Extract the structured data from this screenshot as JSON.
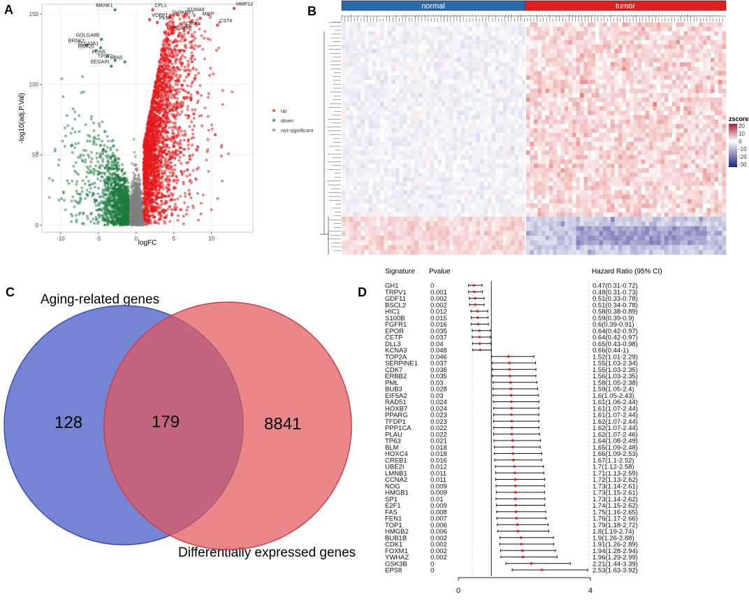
{
  "panel_letters": {
    "a": "A",
    "b": "B",
    "c": "C",
    "d": "D"
  },
  "chart_data": [
    {
      "panel": "A",
      "type": "scatter",
      "title": "",
      "xlabel": "logFC",
      "ylabel": "-log10(adj.P.Val)",
      "xlim": [
        -12.5,
        15.5
      ],
      "ylim": [
        -5,
        157
      ],
      "xticks": [
        -10,
        -5,
        0,
        5,
        10
      ],
      "yticks": [
        0,
        50,
        100,
        150
      ],
      "grid": true,
      "legend": {
        "position": "right",
        "entries": [
          "up",
          "down",
          "not-significant"
        ]
      },
      "colors": {
        "up": "#e41a1c",
        "down": "#1b7a3e",
        "not-significant": "#7f7f7f"
      },
      "labeled_genes": [
        {
          "gene": "MKNK1",
          "x": -2.8,
          "y": 153
        },
        {
          "gene": "CFL1",
          "x": 2.2,
          "y": 153
        },
        {
          "gene": "SH3KBP1",
          "x": 4.5,
          "y": 148
        },
        {
          "gene": "S100A6",
          "x": 6.5,
          "y": 150
        },
        {
          "gene": "MMP12",
          "x": 13.0,
          "y": 154
        },
        {
          "gene": "VOPP1",
          "x": 1.8,
          "y": 146
        },
        {
          "gene": "PKM",
          "x": 2.8,
          "y": 144
        },
        {
          "gene": "MISP",
          "x": 8.5,
          "y": 147
        },
        {
          "gene": "CRIP1",
          "x": 6.3,
          "y": 140
        },
        {
          "gene": "CST4",
          "x": 10.8,
          "y": 142
        },
        {
          "gene": "LGALS3BP",
          "x": 3.8,
          "y": 137
        },
        {
          "gene": "GOLGA8B",
          "x": -4.6,
          "y": 132
        },
        {
          "gene": "BRSK2",
          "x": -6.6,
          "y": 128
        },
        {
          "gene": "SLC43A1",
          "x": -4.7,
          "y": 126
        },
        {
          "gene": "RBM20",
          "x": -5.3,
          "y": 124
        },
        {
          "gene": "PLIN5",
          "x": -3.8,
          "y": 120
        },
        {
          "gene": "UBA5",
          "x": -1.5,
          "y": 116
        },
        {
          "gene": "BEGAIN",
          "x": -3.3,
          "y": 113
        },
        {
          "gene": "TPST2",
          "x": -2.8,
          "y": 117
        }
      ]
    },
    {
      "panel": "B",
      "type": "heatmap",
      "groups": [
        "normal",
        "tumor"
      ],
      "group_colors": [
        "#2b6aa8",
        "#e0201f"
      ],
      "legend_title": "zscore",
      "legend_ticks": [
        "20",
        "10",
        "0",
        "-10",
        "-20",
        "-30"
      ],
      "value_range": [
        -30,
        20
      ]
    },
    {
      "panel": "C",
      "type": "venn",
      "sets": [
        {
          "label": "Aging-related genes",
          "only": "128",
          "color": "#4f63c6"
        },
        {
          "label": "Differentially expressed genes",
          "only": "8841",
          "color": "#e2595e"
        }
      ],
      "intersection": "179"
    },
    {
      "panel": "D",
      "type": "forest",
      "headers": {
        "signature": "Signature",
        "pvalue": "Pvalue",
        "hr": "Hazard Ratio (95% CI)"
      },
      "xlim": [
        0,
        4
      ],
      "xticks": [
        "0",
        "4"
      ],
      "reference_line": 1,
      "rows": [
        {
          "signature": "GH1",
          "pvalue": "0",
          "hr": 0.47,
          "lo": 0.31,
          "hi": 0.72,
          "label": "0.47(0.31-0.72)"
        },
        {
          "signature": "TRPV1",
          "pvalue": "0.001",
          "hr": 0.48,
          "lo": 0.31,
          "hi": 0.73,
          "label": "0.48(0.31-0.73)"
        },
        {
          "signature": "GDF11",
          "pvalue": "0.002",
          "hr": 0.51,
          "lo": 0.33,
          "hi": 0.78,
          "label": "0.51(0.33-0.78)"
        },
        {
          "signature": "BSCL2",
          "pvalue": "0.002",
          "hr": 0.51,
          "lo": 0.34,
          "hi": 0.78,
          "label": "0.51(0.34-0.78)"
        },
        {
          "signature": "HIC1",
          "pvalue": "0.012",
          "hr": 0.58,
          "lo": 0.38,
          "hi": 0.89,
          "label": "0.58(0.38-0.89)"
        },
        {
          "signature": "S100B",
          "pvalue": "0.015",
          "hr": 0.59,
          "lo": 0.39,
          "hi": 0.9,
          "label": "0.59(0.39-0.9)"
        },
        {
          "signature": "FGFR1",
          "pvalue": "0.016",
          "hr": 0.6,
          "lo": 0.39,
          "hi": 0.91,
          "label": "0.6(0.39-0.91)"
        },
        {
          "signature": "EPOR",
          "pvalue": "0.035",
          "hr": 0.64,
          "lo": 0.42,
          "hi": 0.97,
          "label": "0.64(0.42-0.97)"
        },
        {
          "signature": "CETP",
          "pvalue": "0.037",
          "hr": 0.64,
          "lo": 0.42,
          "hi": 0.97,
          "label": "0.64(0.42-0.97)"
        },
        {
          "signature": "DLL3",
          "pvalue": "0.04",
          "hr": 0.65,
          "lo": 0.43,
          "hi": 0.98,
          "label": "0.65(0.43-0.98)"
        },
        {
          "signature": "KCNA3",
          "pvalue": "0.048",
          "hr": 0.66,
          "lo": 0.44,
          "hi": 1.0,
          "label": "0.66(0.44-1)"
        },
        {
          "signature": "TOP2A",
          "pvalue": "0.046",
          "hr": 1.52,
          "lo": 1.01,
          "hi": 2.29,
          "label": "1.52(1.01-2.29)"
        },
        {
          "signature": "SERPINE1",
          "pvalue": "0.037",
          "hr": 1.55,
          "lo": 1.03,
          "hi": 2.34,
          "label": "1.55(1.03-2.34)"
        },
        {
          "signature": "CDK7",
          "pvalue": "0.036",
          "hr": 1.55,
          "lo": 1.03,
          "hi": 2.35,
          "label": "1.55(1.03-2.35)"
        },
        {
          "signature": "ERBB2",
          "pvalue": "0.035",
          "hr": 1.56,
          "lo": 1.03,
          "hi": 2.35,
          "label": "1.56(1.03-2.35)"
        },
        {
          "signature": "PML",
          "pvalue": "0.03",
          "hr": 1.58,
          "lo": 1.05,
          "hi": 2.38,
          "label": "1.58(1.05-2.38)"
        },
        {
          "signature": "BUB3",
          "pvalue": "0.028",
          "hr": 1.59,
          "lo": 1.05,
          "hi": 2.4,
          "label": "1.59(1.05-2.4)"
        },
        {
          "signature": "EIF5A2",
          "pvalue": "0.03",
          "hr": 1.6,
          "lo": 1.05,
          "hi": 2.43,
          "label": "1.6(1.05-2.43)"
        },
        {
          "signature": "RAD51",
          "pvalue": "0.024",
          "hr": 1.61,
          "lo": 1.06,
          "hi": 2.44,
          "label": "1.61(1.06-2.44)"
        },
        {
          "signature": "HOXB7",
          "pvalue": "0.024",
          "hr": 1.61,
          "lo": 1.07,
          "hi": 2.44,
          "label": "1.61(1.07-2.44)"
        },
        {
          "signature": "PPARG",
          "pvalue": "0.023",
          "hr": 1.61,
          "lo": 1.07,
          "hi": 2.44,
          "label": "1.61(1.07-2.44)"
        },
        {
          "signature": "TFDP1",
          "pvalue": "0.023",
          "hr": 1.62,
          "lo": 1.07,
          "hi": 2.44,
          "label": "1.62(1.07-2.44)"
        },
        {
          "signature": "PPP1CA",
          "pvalue": "0.022",
          "hr": 1.62,
          "lo": 1.07,
          "hi": 2.44,
          "label": "1.62(1.07-2.44)"
        },
        {
          "signature": "PLAU",
          "pvalue": "0.022",
          "hr": 1.62,
          "lo": 1.07,
          "hi": 2.46,
          "label": "1.62(1.07-2.46)"
        },
        {
          "signature": "TP63",
          "pvalue": "0.021",
          "hr": 1.64,
          "lo": 1.08,
          "hi": 2.49,
          "label": "1.64(1.08-2.49)"
        },
        {
          "signature": "BLM",
          "pvalue": "0.018",
          "hr": 1.65,
          "lo": 1.09,
          "hi": 2.48,
          "label": "1.65(1.09-2.48)"
        },
        {
          "signature": "HOXC4",
          "pvalue": "0.018",
          "hr": 1.66,
          "lo": 1.09,
          "hi": 2.53,
          "label": "1.66(1.09-2.53)"
        },
        {
          "signature": "CREB1",
          "pvalue": "0.016",
          "hr": 1.67,
          "lo": 1.1,
          "hi": 2.52,
          "label": "1.67(1.1-2.52)"
        },
        {
          "signature": "UBE2I",
          "pvalue": "0.012",
          "hr": 1.7,
          "lo": 1.12,
          "hi": 2.58,
          "label": "1.7(1.12-2.58)"
        },
        {
          "signature": "LMNB1",
          "pvalue": "0.011",
          "hr": 1.71,
          "lo": 1.13,
          "hi": 2.59,
          "label": "1.71(1.13-2.59)"
        },
        {
          "signature": "CCNA2",
          "pvalue": "0.011",
          "hr": 1.72,
          "lo": 1.13,
          "hi": 2.62,
          "label": "1.72(1.13-2.62)"
        },
        {
          "signature": "NOG",
          "pvalue": "0.009",
          "hr": 1.73,
          "lo": 1.14,
          "hi": 2.61,
          "label": "1.73(1.14-2.61)"
        },
        {
          "signature": "HMGB1",
          "pvalue": "0.009",
          "hr": 1.73,
          "lo": 1.15,
          "hi": 2.61,
          "label": "1.73(1.15-2.61)"
        },
        {
          "signature": "SP1",
          "pvalue": "0.01",
          "hr": 1.73,
          "lo": 1.14,
          "hi": 2.62,
          "label": "1.73(1.14-2.62)"
        },
        {
          "signature": "E2F1",
          "pvalue": "0.009",
          "hr": 1.74,
          "lo": 1.15,
          "hi": 2.62,
          "label": "1.74(1.15-2.62)"
        },
        {
          "signature": "FAS",
          "pvalue": "0.008",
          "hr": 1.75,
          "lo": 1.16,
          "hi": 2.65,
          "label": "1.75(1.16-2.65)"
        },
        {
          "signature": "FEN1",
          "pvalue": "0.007",
          "hr": 1.76,
          "lo": 1.17,
          "hi": 2.66,
          "label": "1.76(1.17-2.66)"
        },
        {
          "signature": "TOP1",
          "pvalue": "0.006",
          "hr": 1.79,
          "lo": 1.18,
          "hi": 2.72,
          "label": "1.79(1.18-2.72)"
        },
        {
          "signature": "HMGB2",
          "pvalue": "0.006",
          "hr": 1.8,
          "lo": 1.19,
          "hi": 2.74,
          "label": "1.8(1.19-2.74)"
        },
        {
          "signature": "BUB1B",
          "pvalue": "0.002",
          "hr": 1.9,
          "lo": 1.26,
          "hi": 2.88,
          "label": "1.9(1.26-2.88)"
        },
        {
          "signature": "CDK1",
          "pvalue": "0.002",
          "hr": 1.91,
          "lo": 1.26,
          "hi": 2.89,
          "label": "1.91(1.26-2.89)"
        },
        {
          "signature": "FOXM1",
          "pvalue": "0.002",
          "hr": 1.94,
          "lo": 1.28,
          "hi": 2.94,
          "label": "1.94(1.28-2.94)"
        },
        {
          "signature": "YWHAZ",
          "pvalue": "0.002",
          "hr": 1.96,
          "lo": 1.29,
          "hi": 2.99,
          "label": "1.96(1.29-2.99)"
        },
        {
          "signature": "GSK3B",
          "pvalue": "0",
          "hr": 2.21,
          "lo": 1.44,
          "hi": 3.39,
          "label": "2.21(1.44-3.39)"
        },
        {
          "signature": "EPS8",
          "pvalue": "0",
          "hr": 2.53,
          "lo": 1.63,
          "hi": 3.92,
          "label": "2.53(1.63-3.92)"
        }
      ]
    }
  ]
}
